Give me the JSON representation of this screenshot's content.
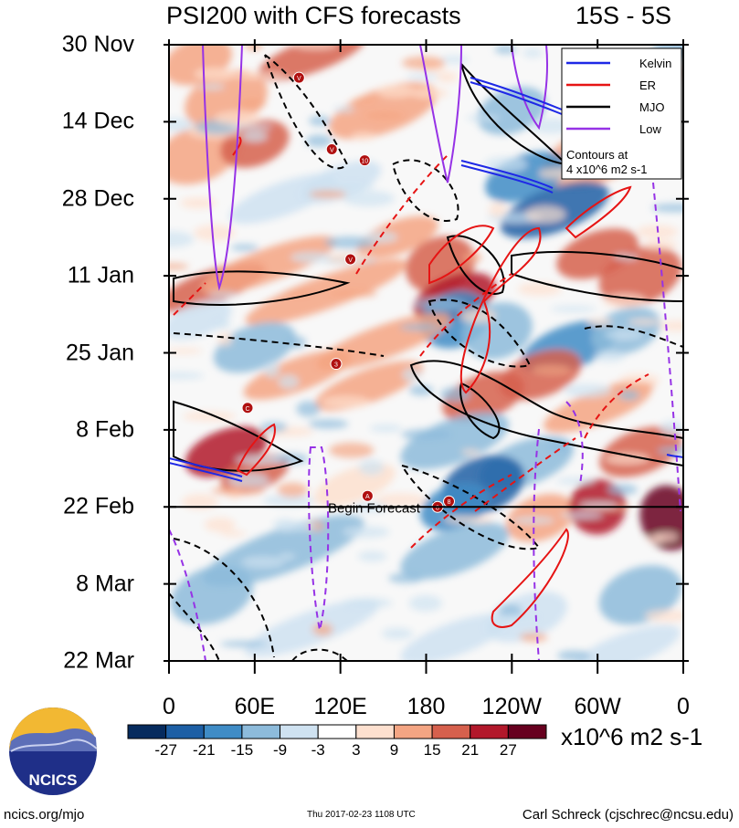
{
  "chart_data": {
    "type": "heatmap",
    "title": "PSI200 with CFS forecasts",
    "latitude_band": "15S - 5S",
    "x_axis": {
      "tick_labels": [
        "0",
        "60E",
        "120E",
        "180",
        "120W",
        "60W",
        "0"
      ],
      "longitudes": [
        0,
        60,
        120,
        180,
        240,
        300,
        360
      ]
    },
    "y_axis": {
      "tick_labels": [
        "30 Nov",
        "14 Dec",
        "28 Dec",
        "11 Jan",
        "25 Jan",
        "8 Feb",
        "22 Feb",
        "8 Mar",
        "22 Mar"
      ],
      "day_offsets": [
        0,
        14,
        28,
        42,
        56,
        70,
        84,
        98,
        112
      ]
    },
    "forecast_start": {
      "label": "Begin Forecast",
      "day_offset": 84
    },
    "legend": {
      "items": [
        {
          "name": "Kelvin",
          "color": "#1e28e6"
        },
        {
          "name": "ER",
          "color": "#e61414"
        },
        {
          "name": "MJO",
          "color": "#000000"
        },
        {
          "name": "Low",
          "color": "#9632e6"
        }
      ],
      "note_line1": "Contours at",
      "note_line2": "4 x10^6 m2 s-1",
      "placement": "top-right"
    },
    "colorbar": {
      "tick_labels": [
        "-27",
        "-21",
        "-15",
        "-9",
        "-3",
        "3",
        "9",
        "15",
        "21",
        "27"
      ],
      "colors": [
        "#062b5e",
        "#1d5fa5",
        "#3f8cc6",
        "#8dbbdb",
        "#cfe2f1",
        "#ffffff",
        "#fde0cf",
        "#f4a583",
        "#d6604d",
        "#b2182b",
        "#67001f"
      ],
      "units": "x10^6 m2 s-1"
    },
    "storm_markers": [
      {
        "label": "V",
        "lon": 91,
        "day": 6
      },
      {
        "label": "V",
        "lon": 114,
        "day": 19
      },
      {
        "label": "10",
        "lon": 137,
        "day": 21
      },
      {
        "label": "V",
        "lon": 127,
        "day": 39
      },
      {
        "label": "3",
        "lon": 117,
        "day": 58
      },
      {
        "label": "C",
        "lon": 55,
        "day": 66
      },
      {
        "label": "A",
        "lon": 139,
        "day": 82
      },
      {
        "label": "8",
        "lon": 188,
        "day": 84
      },
      {
        "label": "8",
        "lon": 196,
        "day": 83
      }
    ]
  },
  "branding": {
    "logo_text": "NCICS"
  },
  "footer": {
    "left": "ncics.org/mjo",
    "middle": "Thu 2017-02-23 1108 UTC",
    "right": "Carl Schreck (cjschrec@ncsu.edu)"
  }
}
